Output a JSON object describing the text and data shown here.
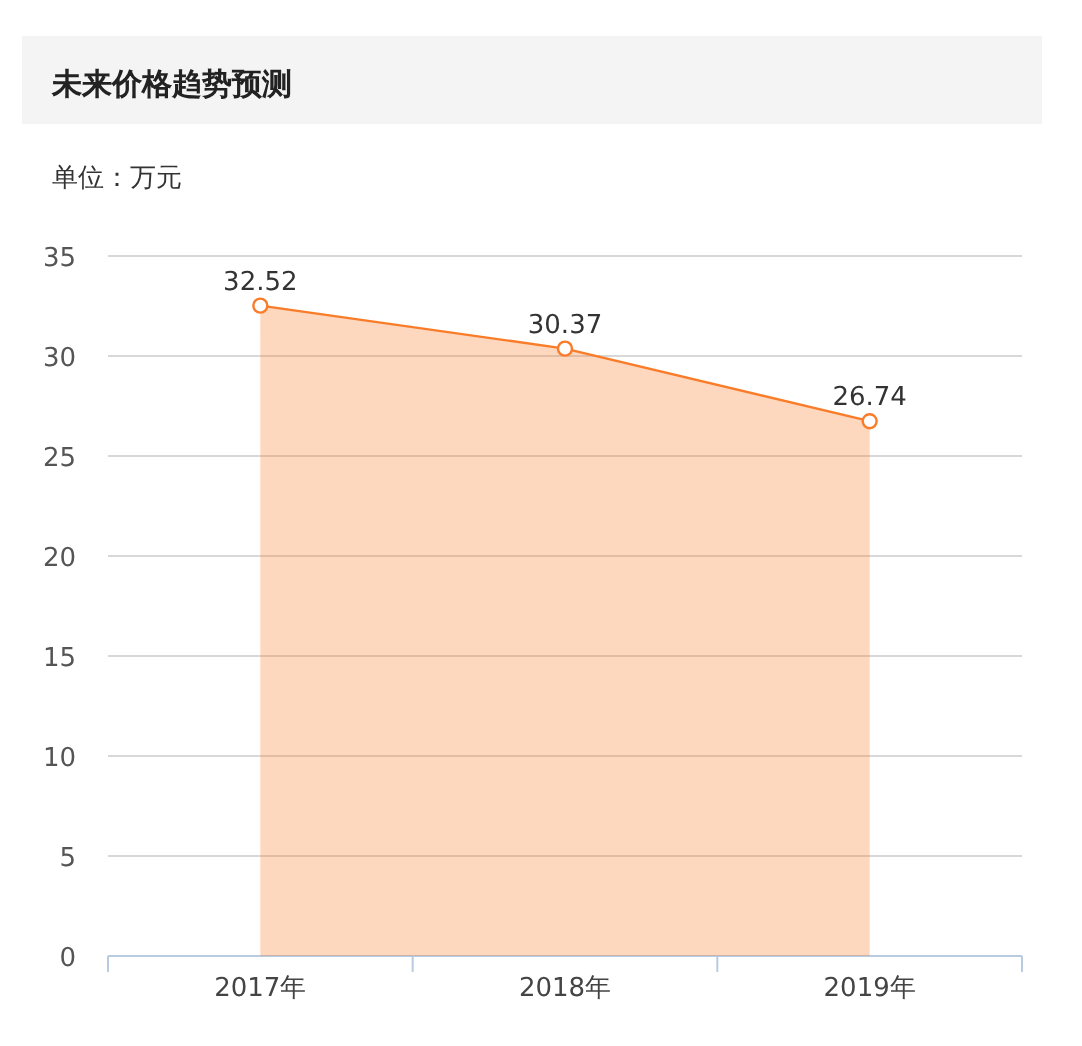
{
  "chart_data": {
    "type": "area",
    "title": "未来价格趋势预测",
    "subtitle": "单位：万元",
    "categories": [
      "2017年",
      "2018年",
      "2019年"
    ],
    "series": [
      {
        "color": "#fa7b28",
        "values": [
          32.52,
          30.37,
          26.74
        ]
      }
    ],
    "ylim": [
      0,
      35
    ],
    "yticks": [
      0,
      5,
      10,
      15,
      20,
      25,
      30,
      35
    ],
    "grid": "y",
    "marker": "circle",
    "line_style": "solid",
    "data_labels": true
  }
}
